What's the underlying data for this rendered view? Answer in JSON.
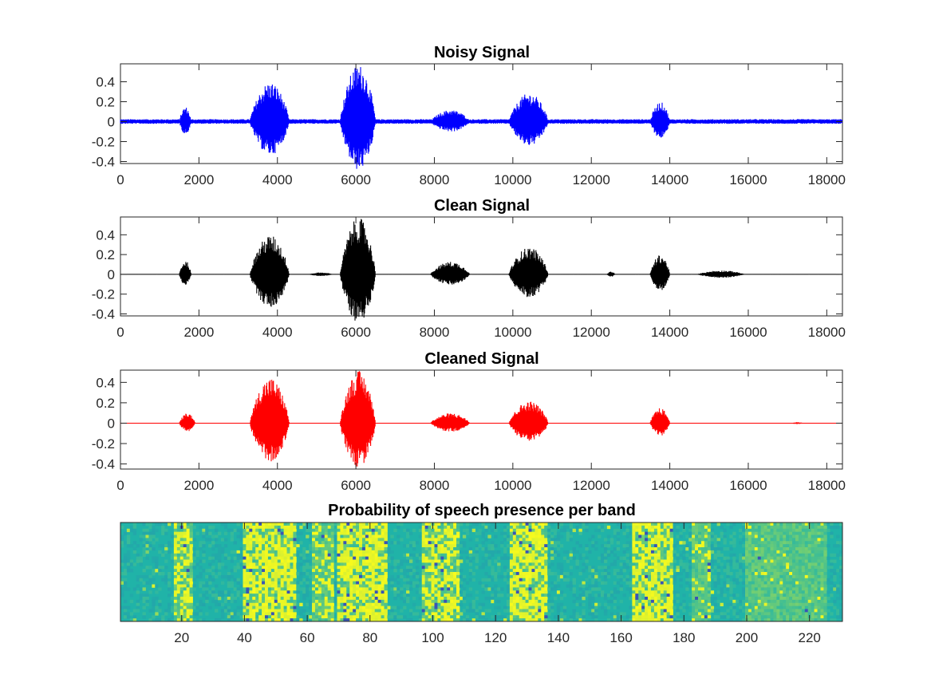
{
  "chart_data": [
    {
      "type": "line",
      "title": "Noisy Signal",
      "color": "#0000ff",
      "xlim": [
        0,
        18400
      ],
      "ylim": [
        -0.42,
        0.58
      ],
      "xticks": [
        0,
        2000,
        4000,
        6000,
        8000,
        10000,
        12000,
        14000,
        16000,
        18000
      ],
      "xtick_labels": [
        "0",
        "2000",
        "4000",
        "6000",
        "8000",
        "10000",
        "12000",
        "14000",
        "16000",
        "18000"
      ],
      "yticks": [
        -0.4,
        -0.2,
        0,
        0.2,
        0.4
      ],
      "ytick_labels": [
        "-0.4",
        "-0.2",
        "0",
        "0.2",
        "0.4"
      ],
      "noise_floor": 0.025,
      "bursts": [
        {
          "start": 1500,
          "end": 1800,
          "amp": 0.15
        },
        {
          "start": 3300,
          "end": 4300,
          "amp": 0.4
        },
        {
          "start": 5600,
          "end": 6500,
          "amp": 0.58
        },
        {
          "start": 7900,
          "end": 8900,
          "amp": 0.12
        },
        {
          "start": 9900,
          "end": 10900,
          "amp": 0.29
        },
        {
          "start": 13500,
          "end": 14000,
          "amp": 0.2
        }
      ]
    },
    {
      "type": "line",
      "title": "Clean Signal",
      "color": "#000000",
      "xlim": [
        0,
        18400
      ],
      "ylim": [
        -0.42,
        0.58
      ],
      "xticks": [
        0,
        2000,
        4000,
        6000,
        8000,
        10000,
        12000,
        14000,
        16000,
        18000
      ],
      "xtick_labels": [
        "0",
        "2000",
        "4000",
        "6000",
        "8000",
        "10000",
        "12000",
        "14000",
        "16000",
        "18000"
      ],
      "yticks": [
        -0.4,
        -0.2,
        0,
        0.2,
        0.4
      ],
      "ytick_labels": [
        "-0.4",
        "-0.2",
        "0",
        "0.2",
        "0.4"
      ],
      "noise_floor": 0.002,
      "bursts": [
        {
          "start": 1500,
          "end": 1800,
          "amp": 0.14
        },
        {
          "start": 3300,
          "end": 4300,
          "amp": 0.4
        },
        {
          "start": 4800,
          "end": 5400,
          "amp": 0.02
        },
        {
          "start": 5600,
          "end": 6500,
          "amp": 0.58
        },
        {
          "start": 7900,
          "end": 8900,
          "amp": 0.13
        },
        {
          "start": 9900,
          "end": 10900,
          "amp": 0.28
        },
        {
          "start": 12400,
          "end": 12600,
          "amp": 0.03
        },
        {
          "start": 13500,
          "end": 14000,
          "amp": 0.2
        },
        {
          "start": 14700,
          "end": 15900,
          "amp": 0.04
        }
      ]
    },
    {
      "type": "line",
      "title": "Cleaned Signal",
      "color": "#ff0000",
      "xlim": [
        0,
        18400
      ],
      "ylim": [
        -0.45,
        0.52
      ],
      "xticks": [
        0,
        2000,
        4000,
        6000,
        8000,
        10000,
        12000,
        14000,
        16000,
        18000
      ],
      "xtick_labels": [
        "0",
        "2000",
        "4000",
        "6000",
        "8000",
        "10000",
        "12000",
        "14000",
        "16000",
        "18000"
      ],
      "yticks": [
        -0.4,
        -0.2,
        0,
        0.2,
        0.4
      ],
      "ytick_labels": [
        "-0.4",
        "-0.2",
        "0",
        "0.2",
        "0.4"
      ],
      "noise_floor": 0.003,
      "bursts": [
        {
          "start": 1500,
          "end": 1900,
          "amp": 0.1
        },
        {
          "start": 3300,
          "end": 4300,
          "amp": 0.45
        },
        {
          "start": 5600,
          "end": 6500,
          "amp": 0.52
        },
        {
          "start": 7900,
          "end": 8900,
          "amp": 0.1
        },
        {
          "start": 9900,
          "end": 10900,
          "amp": 0.22
        },
        {
          "start": 13500,
          "end": 14000,
          "amp": 0.15
        },
        {
          "start": 17100,
          "end": 17400,
          "amp": 0.01
        }
      ]
    },
    {
      "type": "heatmap",
      "title": "Probability of speech presence per band",
      "colormap": {
        "low": "#3b49b8",
        "base": "#20b3a8",
        "high": "#f9fb1c"
      },
      "xlim": [
        0.5,
        230.5
      ],
      "xticks": [
        20,
        40,
        60,
        80,
        100,
        120,
        140,
        160,
        180,
        200,
        220
      ],
      "xtick_labels": [
        "20",
        "40",
        "60",
        "80",
        "100",
        "120",
        "140",
        "160",
        "180",
        "200",
        "220"
      ],
      "n_frames": 230,
      "n_bands": 32,
      "active_regions": [
        {
          "start": 18,
          "end": 23,
          "p": 0.6
        },
        {
          "start": 40,
          "end": 56,
          "p": 0.85
        },
        {
          "start": 62,
          "end": 68,
          "p": 0.4
        },
        {
          "start": 70,
          "end": 85,
          "p": 0.9
        },
        {
          "start": 97,
          "end": 108,
          "p": 0.7
        },
        {
          "start": 125,
          "end": 136,
          "p": 0.85
        },
        {
          "start": 164,
          "end": 176,
          "p": 0.8
        },
        {
          "start": 183,
          "end": 188,
          "p": 0.25
        },
        {
          "start": 200,
          "end": 225,
          "p": 0.06
        }
      ]
    }
  ]
}
